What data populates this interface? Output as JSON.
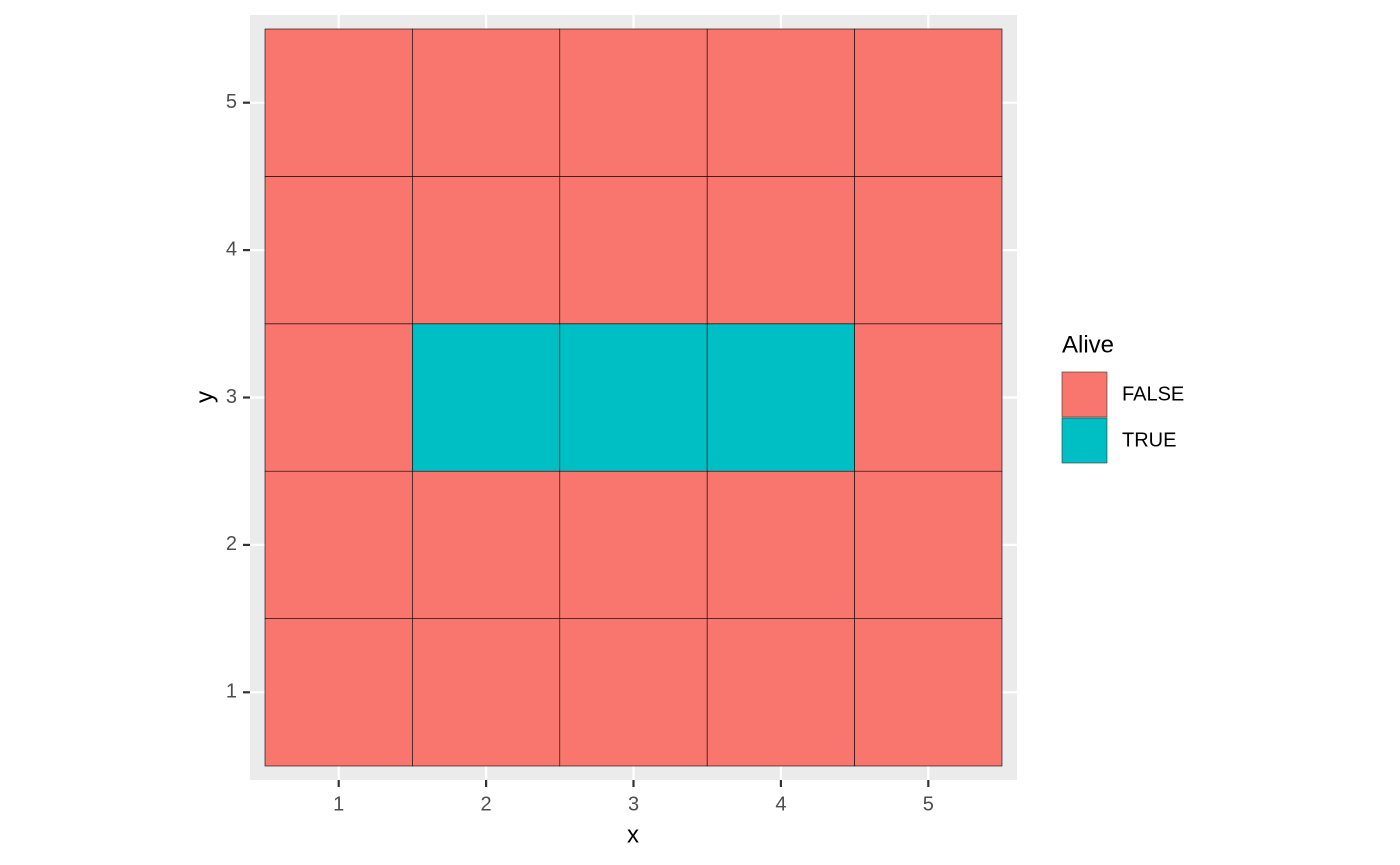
{
  "chart_data": {
    "type": "tile",
    "x_label": "x",
    "y_label": "y",
    "x": [
      1,
      2,
      3,
      4,
      5
    ],
    "y": [
      1,
      2,
      3,
      4,
      5
    ],
    "values": [
      [
        false,
        false,
        false,
        false,
        false
      ],
      [
        false,
        false,
        false,
        false,
        false
      ],
      [
        false,
        true,
        true,
        true,
        false
      ],
      [
        false,
        false,
        false,
        false,
        false
      ],
      [
        false,
        false,
        false,
        false,
        false
      ]
    ],
    "xlim": [
      0.5,
      5.5
    ],
    "ylim": [
      0.5,
      5.5
    ],
    "xticks": [
      1,
      2,
      3,
      4,
      5
    ],
    "yticks": [
      1,
      2,
      3,
      4,
      5
    ],
    "grid": true,
    "legend_title": "Alive",
    "legend": [
      {
        "label": "FALSE",
        "color": "#f8766d"
      },
      {
        "label": "TRUE",
        "color": "#00bfc4"
      }
    ]
  }
}
